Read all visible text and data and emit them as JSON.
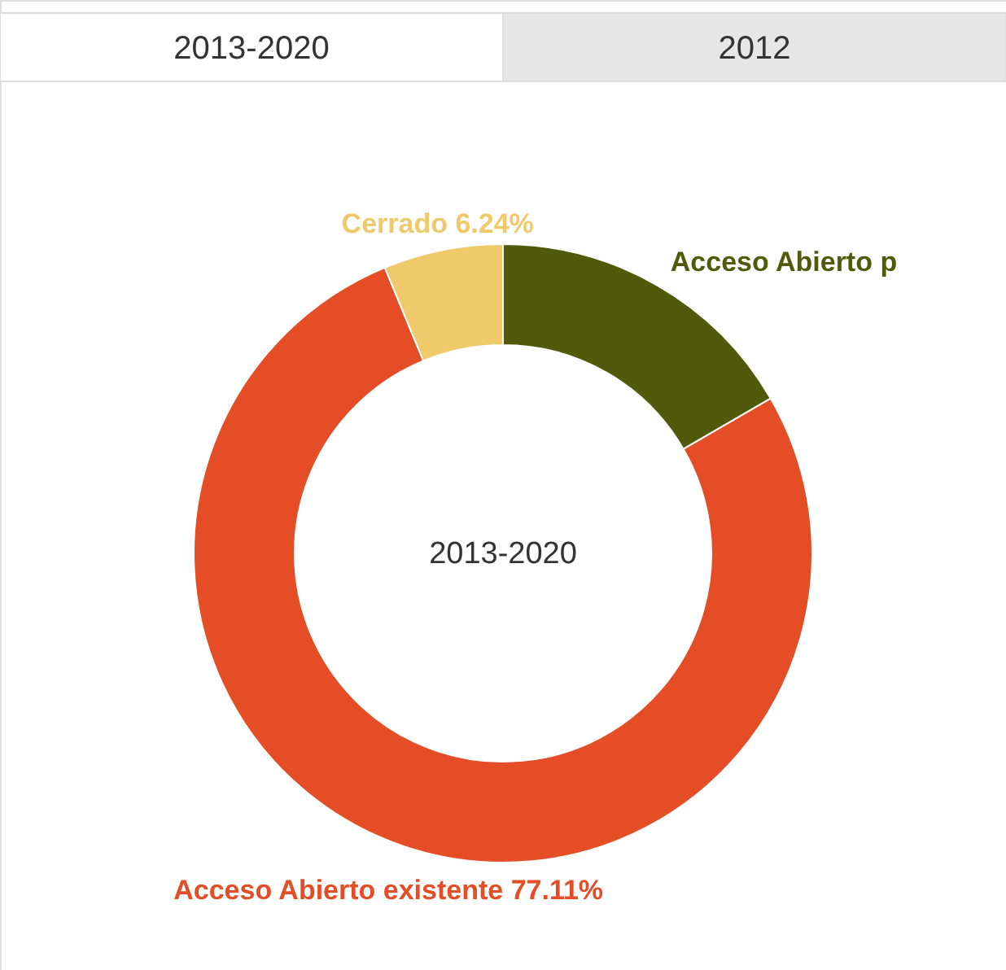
{
  "chart_data": {
    "type": "donut",
    "title": "2013-2020",
    "categories": [
      "Acceso Abierto p",
      "Acceso Abierto existente",
      "Cerrado"
    ],
    "values": [
      16.65,
      77.11,
      6.24
    ],
    "colors": [
      "#4f5b0a",
      "#e44d25",
      "#efc96a"
    ],
    "value_labels": [
      null,
      "77.11%",
      "6.24%"
    ],
    "annotations": [
      "2013-2020",
      "2012"
    ]
  }
}
